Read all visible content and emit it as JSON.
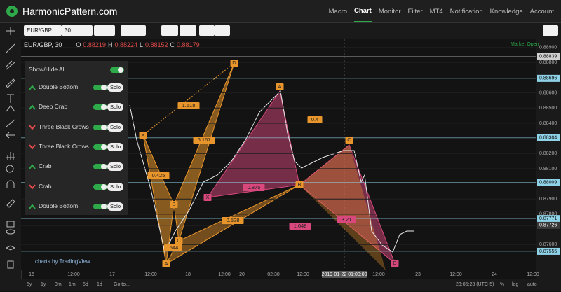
{
  "header": {
    "brand": "HarmonicPattern.com",
    "nav": [
      "Macro",
      "Chart",
      "Monitor",
      "Filter",
      "MT4",
      "Notification",
      "Knowledge",
      "Account"
    ]
  },
  "toolbar": {
    "symbol": "EUR/GBP",
    "interval": "30"
  },
  "legend": {
    "title": "EUR/GBP, 30",
    "o_label": "O",
    "o": "0.88219",
    "h_label": "H",
    "h": "0.88224",
    "l_label": "L",
    "l": "0.88152",
    "c_label": "C",
    "c": "0.88179",
    "status": "Market Open"
  },
  "panel": {
    "show_all": "Show/Hide All",
    "solo_label": "Solo",
    "items": [
      {
        "name": "Double Bottom",
        "direction": "up"
      },
      {
        "name": "Deep Crab",
        "direction": "up"
      },
      {
        "name": "Three Black Crows",
        "direction": "down"
      },
      {
        "name": "Three Black Crows",
        "direction": "down"
      },
      {
        "name": "Crab",
        "direction": "up"
      },
      {
        "name": "Crab",
        "direction": "down"
      },
      {
        "name": "Double Bottom",
        "direction": "up"
      }
    ]
  },
  "price_axis": {
    "ylim": [
      0.8743,
      0.88954
    ],
    "ticks": [
      {
        "value": 0.889,
        "label": "0.88900"
      },
      {
        "value": 0.888,
        "label": "0.88800"
      },
      {
        "value": 0.886,
        "label": "0.88600"
      },
      {
        "value": 0.885,
        "label": "0.88500"
      },
      {
        "value": 0.884,
        "label": "0.88400"
      },
      {
        "value": 0.882,
        "label": "0.88200"
      },
      {
        "value": 0.881,
        "label": "0.88100"
      },
      {
        "value": 0.879,
        "label": "0.87900"
      },
      {
        "value": 0.878,
        "label": "0.87800"
      },
      {
        "value": 0.876,
        "label": "0.87600"
      }
    ],
    "levels": [
      {
        "value": 0.88839,
        "label": "0.88839",
        "color": "#cfcfcf"
      },
      {
        "value": 0.88696,
        "label": "0.88696",
        "color": "#8fd3e8"
      },
      {
        "value": 0.88304,
        "label": "0.88304",
        "color": "#8fd3e8"
      },
      {
        "value": 0.88009,
        "label": "0.88009",
        "color": "#8fd3e8"
      },
      {
        "value": 0.87771,
        "label": "0.87771",
        "color": "#8fd3e8"
      },
      {
        "value": 0.87726,
        "label": "0.87726",
        "color": "#3a3a3a"
      },
      {
        "value": 0.87555,
        "label": "0.87555",
        "color": "#8fd3e8"
      }
    ]
  },
  "time_axis": [
    "16",
    "12:00",
    "17",
    "12:00",
    "18",
    "12:00",
    "20",
    "02:30",
    "12:00",
    "2019-01-22 01:00:00",
    "12:00",
    "23",
    "12:00",
    "24",
    "12:00"
  ],
  "pattern_labels": [
    {
      "text": "D",
      "color": "#e8952b"
    },
    {
      "text": "X",
      "color": "#e8952b"
    },
    {
      "text": "A",
      "color": "#e8952b"
    },
    {
      "text": "B",
      "color": "#e8952b"
    },
    {
      "text": "C",
      "color": "#e8952b"
    },
    {
      "text": "1.618",
      "color": "#e8952b"
    },
    {
      "text": "0.425",
      "color": "#e8952b"
    },
    {
      "text": "6.167",
      "color": "#e8952b"
    },
    {
      "text": "0.528",
      "color": "#e8952b"
    },
    {
      "text": ".544",
      "color": "#e8952b"
    },
    {
      "text": "A",
      "color": "#e8952b"
    },
    {
      "text": "0.4",
      "color": "#e8952b"
    },
    {
      "text": "C",
      "color": "#e8952b"
    },
    {
      "text": "0.875",
      "color": "#d9487c"
    },
    {
      "text": "B",
      "color": "#e8952b"
    },
    {
      "text": "X",
      "color": "#d9487c"
    },
    {
      "text": "1.648",
      "color": "#d9487c"
    },
    {
      "text": "3.21",
      "color": "#d9487c"
    },
    {
      "text": "D",
      "color": "#d9487c"
    }
  ],
  "watermark": "charts by TradingView",
  "bottom": {
    "ranges": [
      "5y",
      "1y",
      "3m",
      "1m",
      "5d",
      "1d",
      "Go to..."
    ],
    "clock": "23:05:23 (UTC-5)",
    "pct": "%",
    "log": "log",
    "auto": "auto"
  }
}
